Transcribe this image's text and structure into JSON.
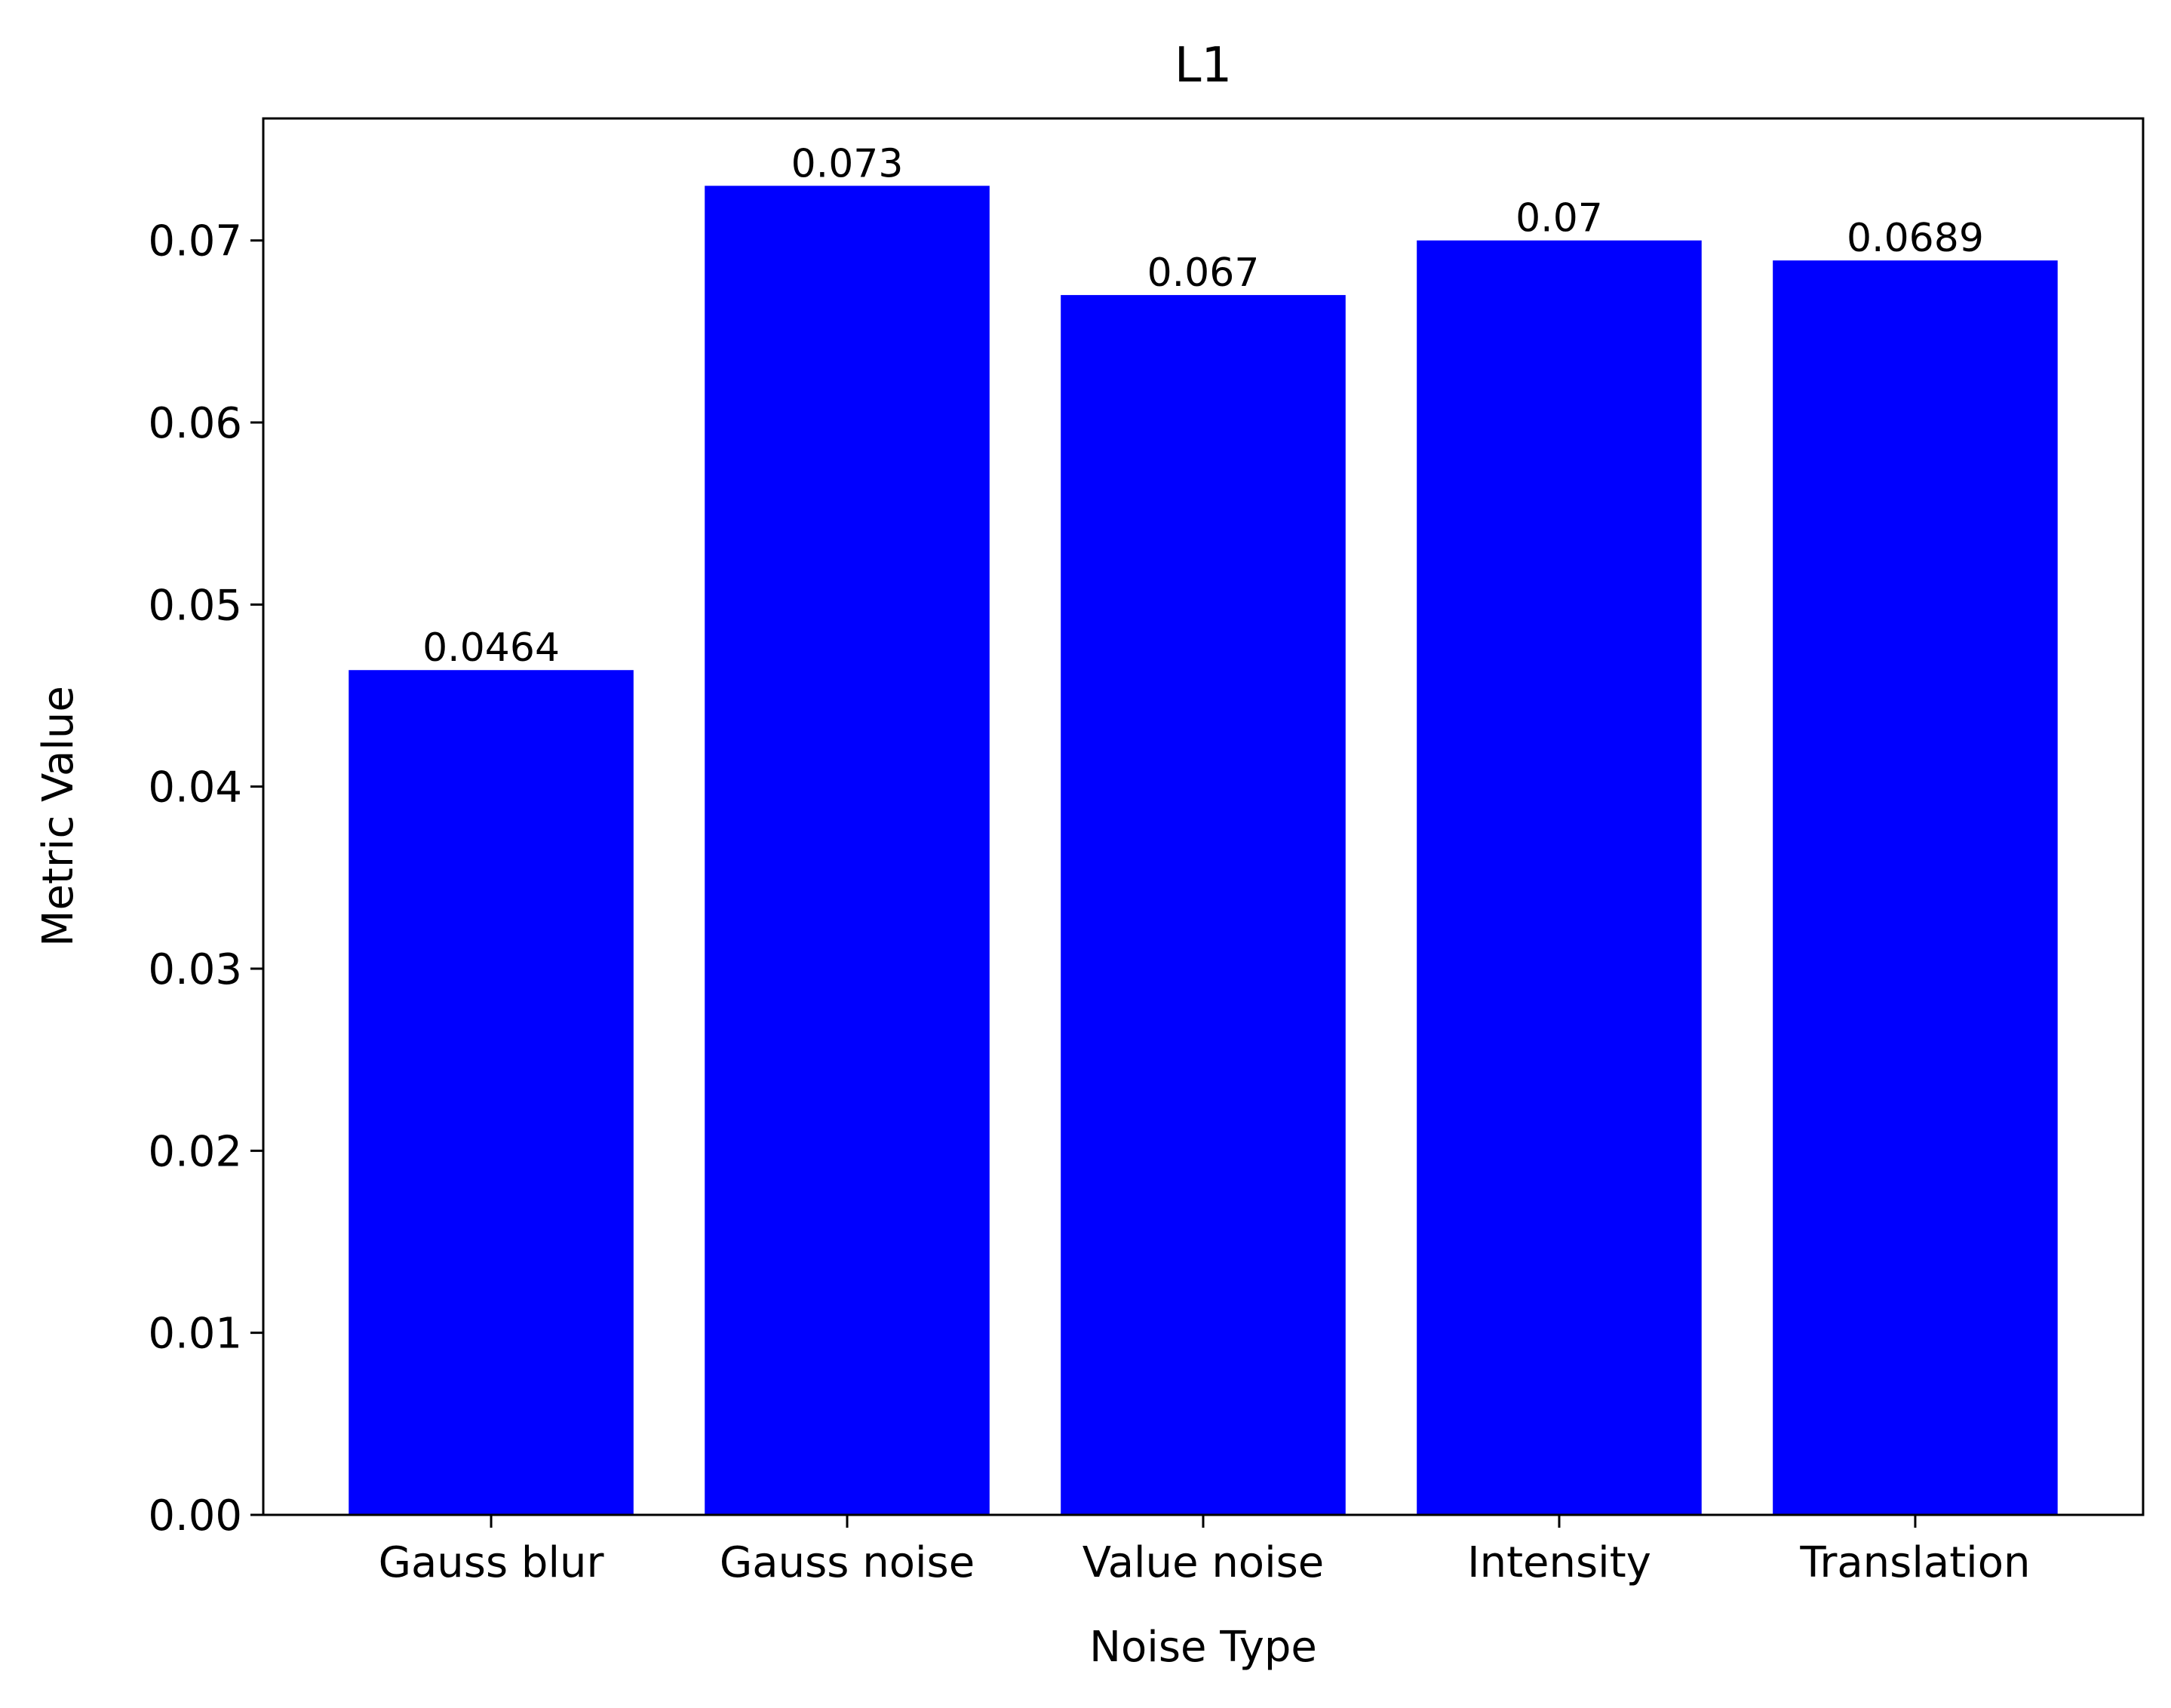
{
  "chart_data": {
    "type": "bar",
    "title": "L1",
    "xlabel": "Noise Type",
    "ylabel": "Metric Value",
    "categories": [
      "Gauss blur",
      "Gauss noise",
      "Value noise",
      "Intensity",
      "Translation"
    ],
    "values": [
      0.0464,
      0.073,
      0.067,
      0.07,
      0.0689
    ],
    "value_labels": [
      "0.0464",
      "0.073",
      "0.067",
      "0.07",
      "0.0689"
    ],
    "ylim": [
      0,
      0.0767
    ],
    "yticks": [
      0,
      0.01,
      0.02,
      0.03,
      0.04,
      0.05,
      0.06,
      0.07
    ],
    "ytick_labels": [
      "0.00",
      "0.01",
      "0.02",
      "0.03",
      "0.04",
      "0.05",
      "0.06",
      "0.07"
    ],
    "bar_color": "#0000ff",
    "grid": false,
    "legend": "none"
  }
}
